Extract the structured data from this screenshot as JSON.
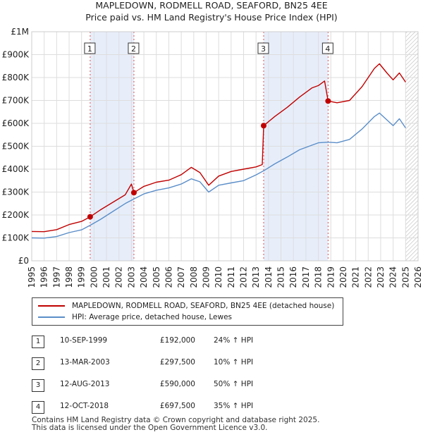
{
  "title": {
    "line1": "MAPLEDOWN, RODMELL ROAD, SEAFORD, BN25 4EE",
    "line2": "Price paid vs. HM Land Registry's House Price Index (HPI)"
  },
  "colors": {
    "property": "#c00000",
    "hpi": "#5b8ec9",
    "shade": "#e7eefa",
    "marker_line": "#e05050",
    "grid": "#dddddd"
  },
  "chart_data": {
    "type": "line",
    "title": "Price paid vs. HM Land Registry's House Price Index (HPI)",
    "xlabel": "",
    "ylabel": "",
    "xlim": [
      1995,
      2026
    ],
    "ylim": [
      0,
      1000000
    ],
    "yticks": [
      {
        "value": 0,
        "label": "£0"
      },
      {
        "value": 100000,
        "label": "£100K"
      },
      {
        "value": 200000,
        "label": "£200K"
      },
      {
        "value": 300000,
        "label": "£300K"
      },
      {
        "value": 400000,
        "label": "£400K"
      },
      {
        "value": 500000,
        "label": "£500K"
      },
      {
        "value": 600000,
        "label": "£600K"
      },
      {
        "value": 700000,
        "label": "£700K"
      },
      {
        "value": 800000,
        "label": "£800K"
      },
      {
        "value": 900000,
        "label": "£900K"
      },
      {
        "value": 1000000,
        "label": "£1M"
      }
    ],
    "xticks": [
      "1995",
      "1996",
      "1997",
      "1998",
      "1999",
      "2000",
      "2001",
      "2002",
      "2003",
      "2004",
      "2005",
      "2006",
      "2007",
      "2008",
      "2009",
      "2010",
      "2011",
      "2012",
      "2013",
      "2014",
      "2015",
      "2016",
      "2017",
      "2018",
      "2019",
      "2020",
      "2021",
      "2022",
      "2023",
      "2024",
      "2025",
      "2026"
    ],
    "shaded_ranges": [
      [
        1999.69,
        2003.2
      ],
      [
        2013.61,
        2018.78
      ]
    ],
    "future_from": 2025.0,
    "series": [
      {
        "name": "MAPLEDOWN, RODMELL ROAD, SEAFORD, BN25 4EE (detached house)",
        "color": "#c00000",
        "points": [
          [
            1995.0,
            128000
          ],
          [
            1996.0,
            127000
          ],
          [
            1997.0,
            136000
          ],
          [
            1998.0,
            158000
          ],
          [
            1999.0,
            172000
          ],
          [
            1999.69,
            192000
          ],
          [
            2000.5,
            222000
          ],
          [
            2001.5,
            255000
          ],
          [
            2002.5,
            288000
          ],
          [
            2003.0,
            335000
          ],
          [
            2003.2,
            297500
          ],
          [
            2004.0,
            325000
          ],
          [
            2005.0,
            343000
          ],
          [
            2006.0,
            352000
          ],
          [
            2007.0,
            376000
          ],
          [
            2007.8,
            408000
          ],
          [
            2008.5,
            385000
          ],
          [
            2009.2,
            330000
          ],
          [
            2010.0,
            370000
          ],
          [
            2011.0,
            390000
          ],
          [
            2012.0,
            400000
          ],
          [
            2013.0,
            410000
          ],
          [
            2013.5,
            420000
          ],
          [
            2013.61,
            590000
          ],
          [
            2014.5,
            630000
          ],
          [
            2015.5,
            670000
          ],
          [
            2016.5,
            715000
          ],
          [
            2017.5,
            755000
          ],
          [
            2018.0,
            765000
          ],
          [
            2018.5,
            785000
          ],
          [
            2018.78,
            697500
          ],
          [
            2019.5,
            690000
          ],
          [
            2020.5,
            700000
          ],
          [
            2021.5,
            760000
          ],
          [
            2022.5,
            840000
          ],
          [
            2022.9,
            860000
          ],
          [
            2023.5,
            820000
          ],
          [
            2024.0,
            790000
          ],
          [
            2024.5,
            820000
          ],
          [
            2025.0,
            780000
          ]
        ]
      },
      {
        "name": "HPI: Average price, detached house, Lewes",
        "color": "#5b8ec9",
        "points": [
          [
            1995.0,
            100000
          ],
          [
            1996.0,
            99000
          ],
          [
            1997.0,
            106000
          ],
          [
            1998.0,
            123000
          ],
          [
            1999.0,
            135000
          ],
          [
            1999.69,
            155000
          ],
          [
            2000.5,
            180000
          ],
          [
            2001.5,
            215000
          ],
          [
            2002.5,
            250000
          ],
          [
            2003.2,
            270000
          ],
          [
            2004.0,
            292000
          ],
          [
            2005.0,
            308000
          ],
          [
            2006.0,
            318000
          ],
          [
            2007.0,
            335000
          ],
          [
            2007.8,
            358000
          ],
          [
            2008.5,
            345000
          ],
          [
            2009.2,
            300000
          ],
          [
            2010.0,
            330000
          ],
          [
            2011.0,
            340000
          ],
          [
            2012.0,
            350000
          ],
          [
            2013.0,
            375000
          ],
          [
            2013.61,
            393000
          ],
          [
            2014.5,
            423000
          ],
          [
            2015.5,
            453000
          ],
          [
            2016.5,
            485000
          ],
          [
            2017.5,
            505000
          ],
          [
            2018.0,
            515000
          ],
          [
            2018.78,
            518000
          ],
          [
            2019.5,
            515000
          ],
          [
            2020.5,
            530000
          ],
          [
            2021.5,
            575000
          ],
          [
            2022.5,
            630000
          ],
          [
            2022.9,
            645000
          ],
          [
            2023.5,
            615000
          ],
          [
            2024.0,
            590000
          ],
          [
            2024.5,
            620000
          ],
          [
            2025.0,
            580000
          ]
        ]
      }
    ],
    "sales": [
      {
        "num": "1",
        "date": "10-SEP-1999",
        "year": 1999.69,
        "price": 192000,
        "price_label": "£192,000",
        "change": "24% ↑ HPI"
      },
      {
        "num": "2",
        "date": "13-MAR-2003",
        "year": 2003.2,
        "price": 297500,
        "price_label": "£297,500",
        "change": "10% ↑ HPI"
      },
      {
        "num": "3",
        "date": "12-AUG-2013",
        "year": 2013.61,
        "price": 590000,
        "price_label": "£590,000",
        "change": "50% ↑ HPI"
      },
      {
        "num": "4",
        "date": "12-OCT-2018",
        "year": 2018.78,
        "price": 697500,
        "price_label": "£697,500",
        "change": "35% ↑ HPI"
      }
    ]
  },
  "legend": {
    "property_label": "MAPLEDOWN, RODMELL ROAD, SEAFORD, BN25 4EE (detached house)",
    "hpi_label": "HPI: Average price, detached house, Lewes"
  },
  "footer": {
    "line1": "Contains HM Land Registry data © Crown copyright and database right 2025.",
    "line2": "This data is licensed under the Open Government Licence v3.0."
  }
}
